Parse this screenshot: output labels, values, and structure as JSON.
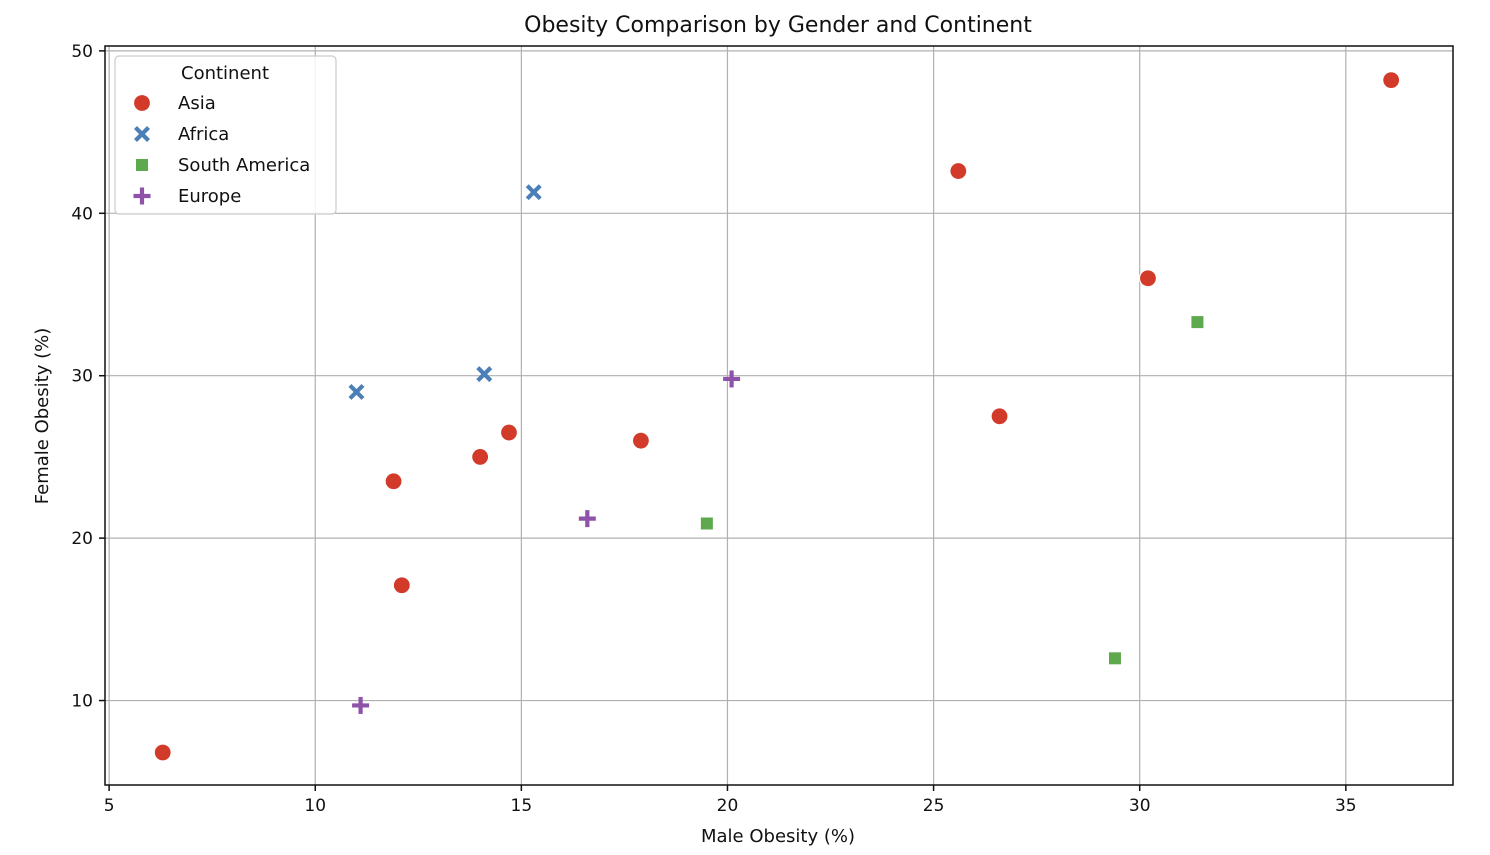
{
  "chart_data": {
    "type": "scatter",
    "title": "Obesity Comparison by Gender and Continent",
    "xlabel": "Male Obesity (%)",
    "ylabel": "Female Obesity (%)",
    "xlim": [
      4.9,
      37.6
    ],
    "ylim": [
      4.8,
      50.3
    ],
    "xticks": [
      5,
      10,
      15,
      20,
      25,
      30,
      35
    ],
    "yticks": [
      10,
      20,
      30,
      40,
      50
    ],
    "grid": true,
    "legend": {
      "title": "Continent",
      "placement": "top-left"
    },
    "series": [
      {
        "name": "Asia",
        "marker": "circle",
        "color": "#d23a2a",
        "points": [
          {
            "x": 6.3,
            "y": 6.8
          },
          {
            "x": 11.9,
            "y": 23.5
          },
          {
            "x": 12.1,
            "y": 17.1
          },
          {
            "x": 14.0,
            "y": 25.0
          },
          {
            "x": 14.7,
            "y": 26.5
          },
          {
            "x": 17.9,
            "y": 26.0
          },
          {
            "x": 25.6,
            "y": 42.6
          },
          {
            "x": 26.6,
            "y": 27.5
          },
          {
            "x": 30.2,
            "y": 36.0
          },
          {
            "x": 36.1,
            "y": 48.2
          }
        ]
      },
      {
        "name": "Africa",
        "marker": "x",
        "color": "#4a7fb8",
        "points": [
          {
            "x": 11.0,
            "y": 29.0
          },
          {
            "x": 14.1,
            "y": 30.1
          },
          {
            "x": 15.3,
            "y": 41.3
          }
        ]
      },
      {
        "name": "South America",
        "marker": "square",
        "color": "#5ea84e",
        "points": [
          {
            "x": 19.5,
            "y": 20.9
          },
          {
            "x": 29.4,
            "y": 12.6
          },
          {
            "x": 31.4,
            "y": 33.3
          }
        ]
      },
      {
        "name": "Europe",
        "marker": "plus",
        "color": "#8e52a8",
        "points": [
          {
            "x": 11.1,
            "y": 9.7
          },
          {
            "x": 16.6,
            "y": 21.2
          },
          {
            "x": 20.1,
            "y": 29.8
          }
        ]
      }
    ]
  }
}
